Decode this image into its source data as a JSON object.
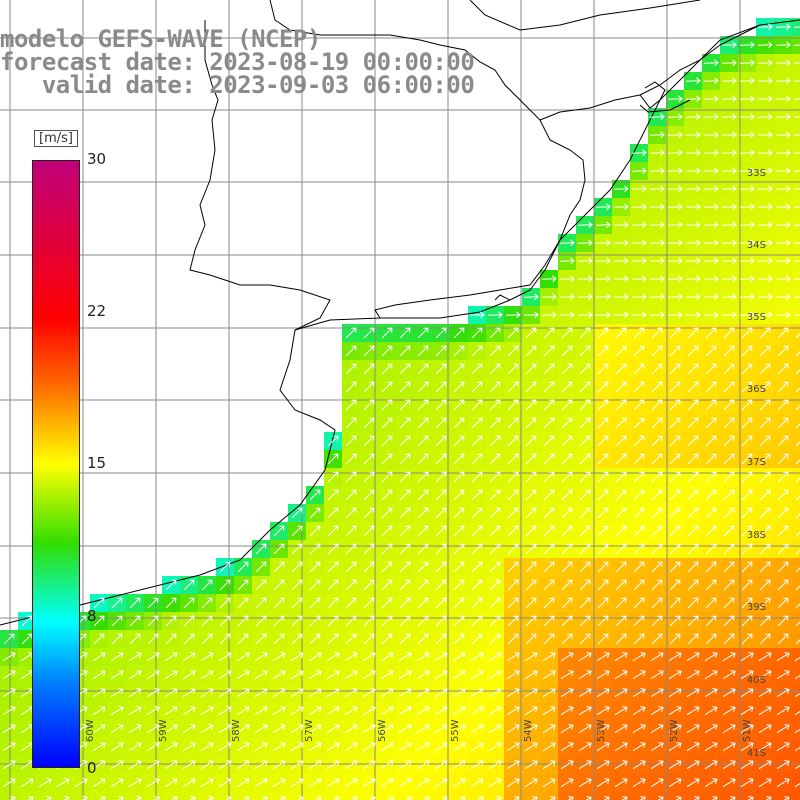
{
  "header": {
    "line1": "modelo GEFS-WAVE (NCEP)",
    "line2": "forecast date: 2023-08-19 00:00:00",
    "line3": "   valid date: 2023-09-03 06:00:00"
  },
  "colorbar": {
    "unit": "[m/s]",
    "ticks": [
      "30",
      "22",
      "15",
      "8",
      "0"
    ],
    "tick_values": [
      30,
      22,
      15,
      8,
      0
    ],
    "colors": [
      "#0000ff",
      "#0080ff",
      "#00ffff",
      "#33dd00",
      "#ffff00",
      "#ff6a00",
      "#ff0000",
      "#c0007a"
    ]
  },
  "map": {
    "lat_labels": [
      "33S",
      "34S",
      "35S",
      "36S",
      "37S",
      "38S",
      "39S",
      "40S",
      "41S"
    ],
    "lon_labels": [
      "60W",
      "59W",
      "58W",
      "57W",
      "56W",
      "55W",
      "54W",
      "53W",
      "52W",
      "51W"
    ],
    "coast_color": "#000000",
    "grid_color": "#888888",
    "vector_color": "#ffffff"
  }
}
